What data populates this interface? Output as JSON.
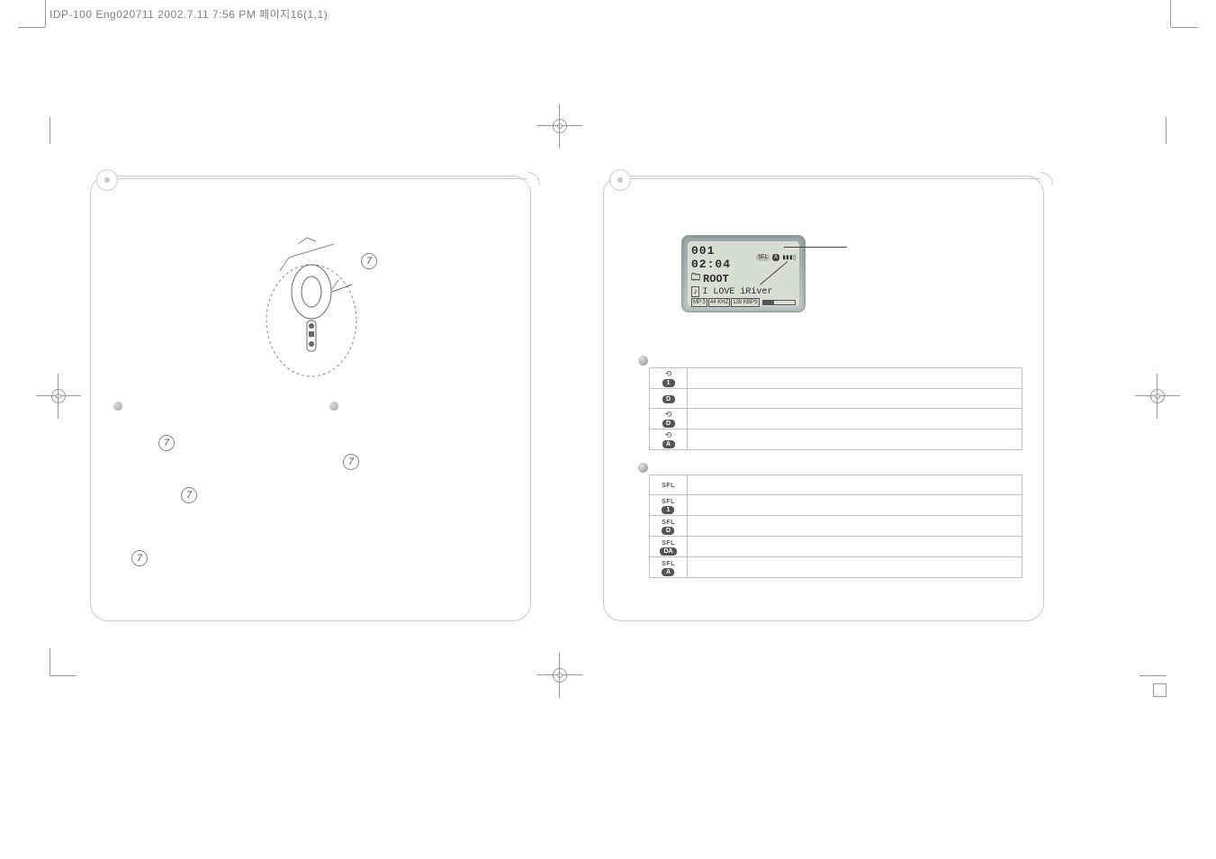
{
  "header": "IDP-100 Eng020711  2002.7.11 7:56 PM  페이지16(1,1)",
  "callout_num": "7",
  "lcd": {
    "track_time": "001 02:04",
    "sfl": "SFL",
    "a": "A",
    "folder": "ROOT",
    "song": "I LOVE iRiver",
    "chip1": "MP\n3",
    "chip2": "44\nKHZ",
    "chip3": "128\nKBPS"
  },
  "repeat_rows": [
    {
      "loop": true,
      "pill": "1"
    },
    {
      "loop": false,
      "pill": "D"
    },
    {
      "loop": true,
      "pill": "D"
    },
    {
      "loop": true,
      "pill": "A"
    }
  ],
  "shuffle_rows": [
    {
      "sfl": "SFL",
      "pill": ""
    },
    {
      "sfl": "SFL",
      "pill": "1"
    },
    {
      "sfl": "SFL",
      "pill": "D"
    },
    {
      "sfl": "SFL",
      "pill": "DA"
    },
    {
      "sfl": "SFL",
      "pill": "A"
    }
  ]
}
